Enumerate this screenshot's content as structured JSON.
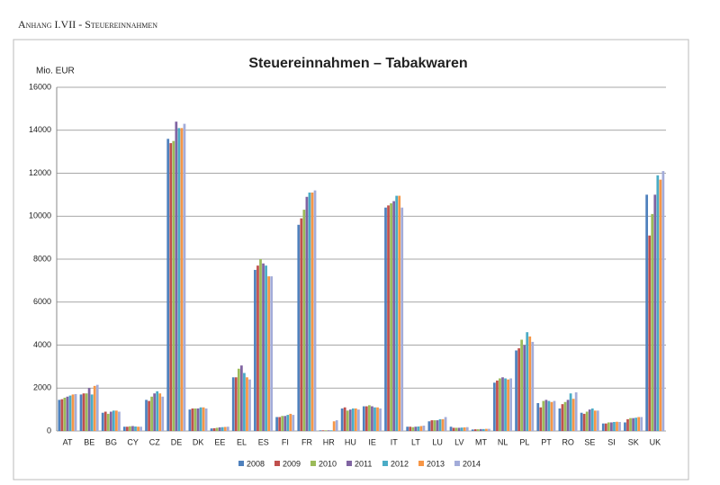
{
  "header": "Anhang I.VII - Steuereinnahmen",
  "chart_data": {
    "type": "bar",
    "title": "Steuereinnahmen – Tabakwaren",
    "y_label": "Mio. EUR",
    "categories": [
      "AT",
      "BE",
      "BG",
      "CY",
      "CZ",
      "DE",
      "DK",
      "EE",
      "EL",
      "ES",
      "FI",
      "FR",
      "HR",
      "HU",
      "IE",
      "IT",
      "LT",
      "LU",
      "LV",
      "MT",
      "NL",
      "PL",
      "PT",
      "RO",
      "SE",
      "SI",
      "SK",
      "UK"
    ],
    "series": [
      {
        "name": "2008",
        "color": "#4f81bd",
        "values": [
          1450,
          1700,
          850,
          200,
          1450,
          13600,
          1000,
          120,
          2500,
          7500,
          650,
          9600,
          30,
          1050,
          1150,
          10400,
          200,
          450,
          200,
          70,
          2250,
          3750,
          1300,
          1050,
          850,
          350,
          400,
          11000
        ]
      },
      {
        "name": "2009",
        "color": "#c0504d",
        "values": [
          1480,
          1750,
          900,
          200,
          1400,
          13400,
          1050,
          130,
          2500,
          7700,
          650,
          9900,
          30,
          1100,
          1150,
          10500,
          200,
          500,
          150,
          80,
          2350,
          3850,
          1100,
          1250,
          800,
          350,
          550,
          9100
        ]
      },
      {
        "name": "2010",
        "color": "#9bbb59",
        "values": [
          1550,
          1750,
          800,
          220,
          1600,
          13500,
          1050,
          150,
          2900,
          8000,
          700,
          10300,
          30,
          950,
          1200,
          10600,
          180,
          500,
          150,
          80,
          2450,
          4250,
          1400,
          1350,
          900,
          400,
          600,
          10100
        ]
      },
      {
        "name": "2011",
        "color": "#8064a2",
        "values": [
          1600,
          2000,
          900,
          230,
          1750,
          14400,
          1050,
          170,
          3050,
          7800,
          700,
          10900,
          30,
          1000,
          1150,
          10700,
          200,
          500,
          150,
          90,
          2500,
          4000,
          1450,
          1450,
          1000,
          400,
          600,
          11000
        ]
      },
      {
        "name": "2012",
        "color": "#4bacc6",
        "values": [
          1650,
          1700,
          950,
          210,
          1850,
          14100,
          1100,
          180,
          2700,
          7700,
          750,
          11100,
          30,
          1050,
          1100,
          10950,
          210,
          550,
          160,
          90,
          2450,
          4600,
          1400,
          1750,
          1050,
          420,
          620,
          11900
        ]
      },
      {
        "name": "2013",
        "color": "#f79646",
        "values": [
          1700,
          2100,
          950,
          200,
          1750,
          14100,
          1100,
          190,
          2500,
          7200,
          800,
          11100,
          450,
          1050,
          1100,
          10950,
          230,
          550,
          170,
          100,
          2400,
          4400,
          1350,
          1500,
          950,
          430,
          650,
          11700
        ]
      },
      {
        "name": "2014",
        "color": "#a3acd9",
        "values": [
          1720,
          2150,
          900,
          200,
          1600,
          14300,
          1050,
          200,
          2400,
          7200,
          750,
          11200,
          500,
          1000,
          1050,
          10400,
          250,
          650,
          180,
          100,
          2450,
          4150,
          1400,
          1800,
          950,
          420,
          650,
          12100
        ]
      }
    ],
    "ylim": [
      0,
      16000
    ],
    "yticks": [
      0,
      2000,
      4000,
      6000,
      8000,
      10000,
      12000,
      14000,
      16000
    ],
    "grid": true,
    "legend": "bottom"
  }
}
